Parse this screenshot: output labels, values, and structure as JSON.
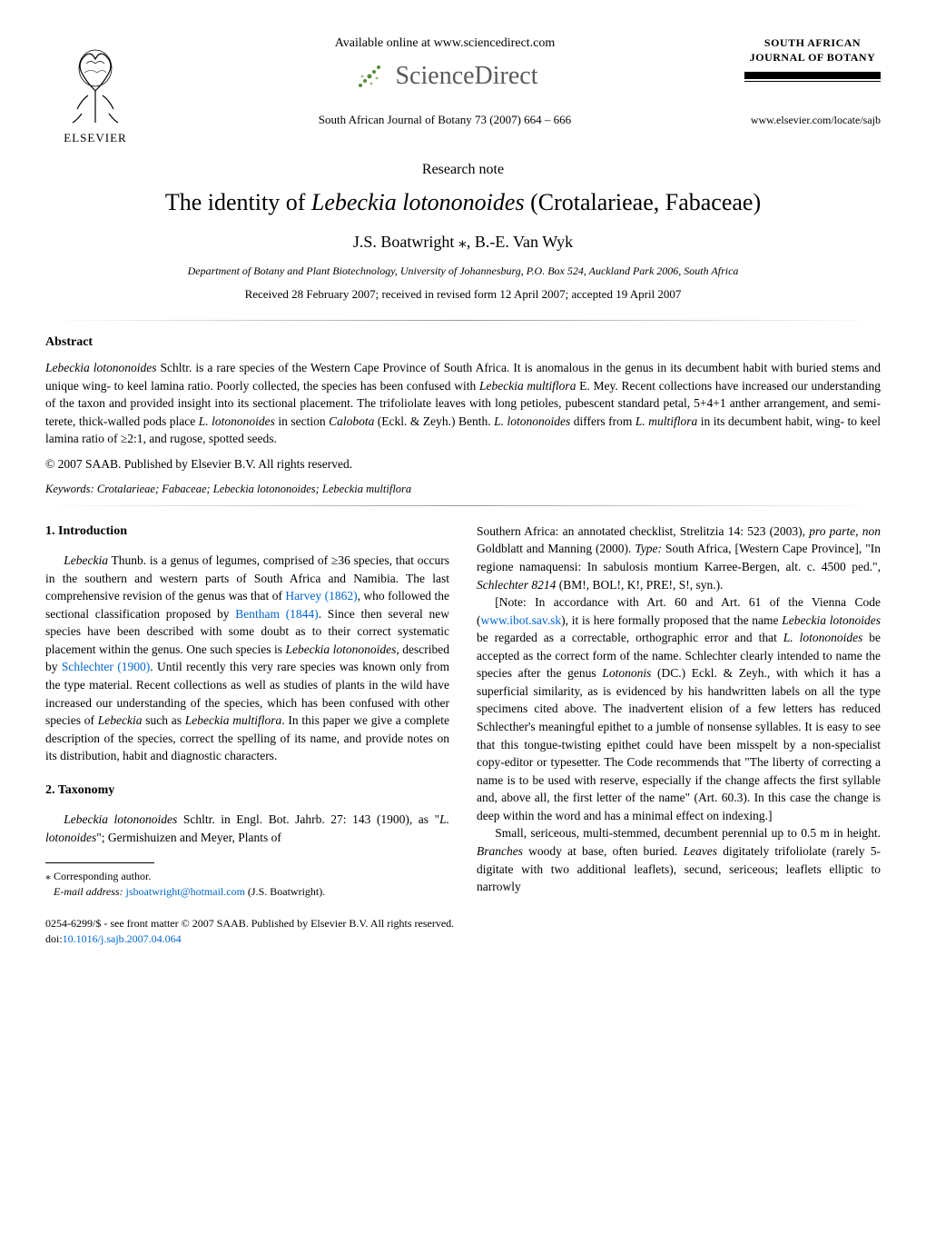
{
  "header": {
    "elsevier_label": "ELSEVIER",
    "available_online": "Available online at www.sciencedirect.com",
    "sciencedirect_label": "ScienceDirect",
    "journal_citation": "South African Journal of Botany 73 (2007) 664 – 666",
    "badge_line1": "SOUTH AFRICAN",
    "badge_line2": "JOURNAL OF BOTANY",
    "journal_url": "www.elsevier.com/locate/sajb"
  },
  "article": {
    "note_type": "Research note",
    "title_pre": "The identity of ",
    "title_italic": "Lebeckia lotononoides",
    "title_post": " (Crotalarieae, Fabaceae)",
    "authors": "J.S. Boatwright ⁎, B.-E. Van Wyk",
    "affiliation": "Department of Botany and Plant Biotechnology, University of Johannesburg, P.O. Box 524, Auckland Park 2006, South Africa",
    "dates": "Received 28 February 2007; received in revised form 12 April 2007; accepted 19 April 2007"
  },
  "abstract": {
    "heading": "Abstract",
    "body_html": "<span class='italic'>Lebeckia lotononoides</span> Schltr. is a rare species of the Western Cape Province of South Africa. It is anomalous in the genus in its decumbent habit with buried stems and unique wing- to keel lamina ratio. Poorly collected, the species has been confused with <span class='italic'>Lebeckia multiflora</span> E. Mey. Recent collections have increased our understanding of the taxon and provided insight into its sectional placement. The trifoliolate leaves with long petioles, pubescent standard petal, 5+4+1 anther arrangement, and semi-terete, thick-walled pods place <span class='italic'>L. lotononoides</span> in section <span class='italic'>Calobota</span> (Eckl. & Zeyh.) Benth. <span class='italic'>L. lotononoides</span> differs from <span class='italic'>L. multiflora</span> in its decumbent habit, wing- to keel lamina ratio of ≥2:1, and rugose, spotted seeds.",
    "copyright": "© 2007 SAAB. Published by Elsevier B.V. All rights reserved.",
    "keywords_label": "Keywords:",
    "keywords_text": " Crotalarieae; Fabaceae; Lebeckia lotononoides; Lebeckia multiflora"
  },
  "body": {
    "sec1_heading": "1. Introduction",
    "sec1_p1_html": "<span class='italic'>Lebeckia</span> Thunb. is a genus of legumes, comprised of ≥36 species, that occurs in the southern and western parts of South Africa and Namibia. The last comprehensive revision of the genus was that of <span class='link'>Harvey (1862)</span>, who followed the sectional classification proposed by <span class='link'>Bentham (1844)</span>. Since then several new species have been described with some doubt as to their correct systematic placement within the genus. One such species is <span class='italic'>Lebeckia lotononoides</span>, described by <span class='link'>Schlechter (1900)</span>. Until recently this very rare species was known only from the type material. Recent collections as well as studies of plants in the wild have increased our understanding of the species, which has been confused with other species of <span class='italic'>Lebeckia</span> such as <span class='italic'>Lebeckia multiflora</span>. In this paper we give a complete description of the species, correct the spelling of its name, and provide notes on its distribution, habit and diagnostic characters.",
    "sec2_heading": "2. Taxonomy",
    "sec2_p1_html": "<span class='italic'>Lebeckia lotononoides</span> Schltr. in Engl. Bot. Jahrb. 27: 143 (1900), as \"<span class='italic'>L. lotonoides</span>\"; Germishuizen and Meyer, Plants of",
    "col2_p1_html": "Southern Africa: an annotated checklist, Strelitzia 14: 523 (2003), <span class='italic'>pro parte</span>, <span class='italic'>non</span> Goldblatt and Manning (2000). <span class='italic'>Type:</span> South Africa, [Western Cape Province], \"In regione namaquensi: In sabulosis montium Karree-Bergen, alt. c. 4500 ped.\", <span class='italic'>Schlechter 8214</span> (BM!, BOL!, K!, PRE!, S!, syn.).",
    "col2_p2_html": "[Note: In accordance with Art. 60 and Art. 61 of the Vienna Code (<span class='link'>www.ibot.sav.sk</span>), it is here formally proposed that the name <span class='italic'>Lebeckia lotonoides</span> be regarded as a correctable, orthographic error and that <span class='italic'>L. lotononoides</span> be accepted as the correct form of the name. Schlechter clearly intended to name the species after the genus <span class='italic'>Lotononis</span> (DC.) Eckl. & Zeyh., with which it has a superficial similarity, as is evidenced by his handwritten labels on all the type specimens cited above. The inadvertent elision of a few letters has reduced Schlecther's meaningful epithet to a jumble of nonsense syllables. It is easy to see that this tongue-twisting epithet could have been misspelt by a non-specialist copy-editor or typesetter. The Code recommends that \"The liberty of correcting a name is to be used with reserve, especially if the change affects the first syllable and, above all, the first letter of the name\" (Art. 60.3). In this case the change is deep within the word and has a minimal effect on indexing.]",
    "col2_p3_html": "Small, sericeous, multi-stemmed, decumbent perennial up to 0.5 m in height. <span class='italic'>Branches</span> woody at base, often buried. <span class='italic'>Leaves</span> digitately trifoliolate (rarely 5-digitate with two additional leaflets), secund, sericeous; leaflets elliptic to narrowly"
  },
  "footnote": {
    "corr": "⁎ Corresponding author.",
    "email_label": "E-mail address:",
    "email": " jsboatwright@hotmail.com",
    "email_post": " (J.S. Boatwright)."
  },
  "footer": {
    "line1": "0254-6299/$ - see front matter © 2007 SAAB. Published by Elsevier B.V. All rights reserved.",
    "doi_label": "doi:",
    "doi": "10.1016/j.sajb.2007.04.064"
  },
  "colors": {
    "link": "#0066cc",
    "sd_gray": "#5a5a5a"
  }
}
